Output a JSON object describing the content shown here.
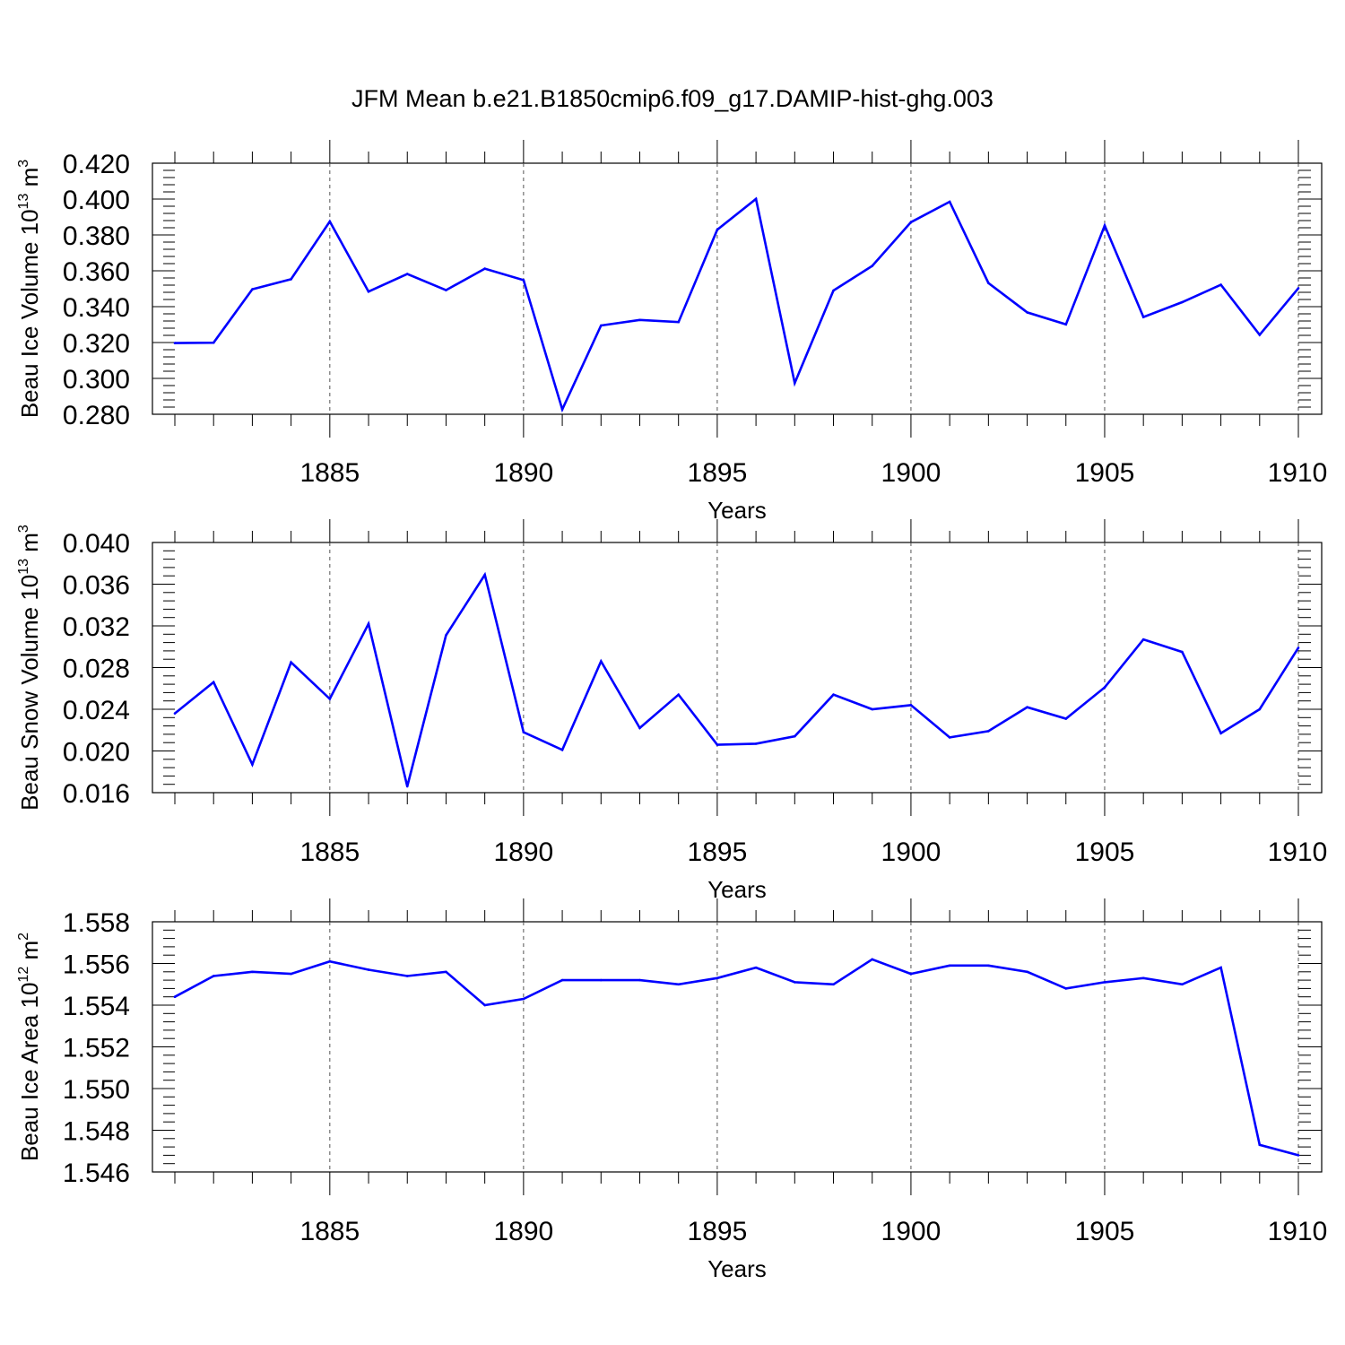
{
  "title": "JFM Mean b.e21.B1850cmip6.f09_g17.DAMIP-hist-ghg.003",
  "colors": {
    "series": "#0000ff",
    "axis": "#000000",
    "grid": "#555555"
  },
  "chart_data": [
    {
      "type": "line",
      "name": "ice-volume",
      "ylabel": {
        "text": "Beau Ice Volume 10",
        "exp": "13",
        "unit": " m",
        "unit_exp": "3"
      },
      "xlabel": "Years",
      "xlim": [
        1881,
        1910
      ],
      "ylim": [
        0.28,
        0.42
      ],
      "yticks": [
        "0.420",
        "0.400",
        "0.380",
        "0.360",
        "0.340",
        "0.320",
        "0.300",
        "0.280"
      ],
      "ytick_values": [
        0.42,
        0.4,
        0.38,
        0.36,
        0.34,
        0.32,
        0.3,
        0.28
      ],
      "xticks": [
        "1885",
        "1890",
        "1895",
        "1900",
        "1905",
        "1910"
      ],
      "xtick_values": [
        1885,
        1890,
        1895,
        1900,
        1905,
        1910
      ],
      "grid": "dashed vertical at major x ticks",
      "x": [
        1881,
        1882,
        1883,
        1884,
        1885,
        1886,
        1887,
        1888,
        1889,
        1890,
        1891,
        1892,
        1893,
        1894,
        1895,
        1896,
        1897,
        1898,
        1899,
        1900,
        1901,
        1902,
        1903,
        1904,
        1905,
        1906,
        1907,
        1908,
        1909,
        1910
      ],
      "values": [
        0.3197,
        0.3199,
        0.3497,
        0.3553,
        0.3875,
        0.3484,
        0.3582,
        0.3492,
        0.3612,
        0.3548,
        0.2827,
        0.3295,
        0.3326,
        0.3314,
        0.3829,
        0.4001,
        0.2974,
        0.349,
        0.3627,
        0.3871,
        0.3985,
        0.3532,
        0.3368,
        0.3301,
        0.3852,
        0.3342,
        0.3425,
        0.3522,
        0.3243,
        0.3503
      ]
    },
    {
      "type": "line",
      "name": "snow-volume",
      "ylabel": {
        "text": "Beau Snow Volume 10",
        "exp": "13",
        "unit": " m",
        "unit_exp": "3"
      },
      "xlabel": "Years",
      "xlim": [
        1881,
        1910
      ],
      "ylim": [
        0.016,
        0.04
      ],
      "yticks": [
        "0.040",
        "0.036",
        "0.032",
        "0.028",
        "0.024",
        "0.020",
        "0.016"
      ],
      "ytick_values": [
        0.04,
        0.036,
        0.032,
        0.028,
        0.024,
        0.02,
        0.016
      ],
      "xticks": [
        "1885",
        "1890",
        "1895",
        "1900",
        "1905",
        "1910"
      ],
      "xtick_values": [
        1885,
        1890,
        1895,
        1900,
        1905,
        1910
      ],
      "grid": "dashed vertical at major x ticks",
      "x": [
        1881,
        1882,
        1883,
        1884,
        1885,
        1886,
        1887,
        1888,
        1889,
        1890,
        1891,
        1892,
        1893,
        1894,
        1895,
        1896,
        1897,
        1898,
        1899,
        1900,
        1901,
        1902,
        1903,
        1904,
        1905,
        1906,
        1907,
        1908,
        1909,
        1910
      ],
      "values": [
        0.0236,
        0.0266,
        0.0187,
        0.0285,
        0.025,
        0.0322,
        0.0166,
        0.0311,
        0.0369,
        0.0218,
        0.0201,
        0.0286,
        0.0222,
        0.0254,
        0.0206,
        0.0207,
        0.0214,
        0.0254,
        0.024,
        0.0244,
        0.0213,
        0.0219,
        0.0242,
        0.0231,
        0.0261,
        0.0307,
        0.0295,
        0.0217,
        0.024,
        0.0299
      ]
    },
    {
      "type": "line",
      "name": "ice-area",
      "ylabel": {
        "text": "Beau Ice Area 10",
        "exp": "12",
        "unit": " m",
        "unit_exp": "2"
      },
      "xlabel": "Years",
      "xlim": [
        1881,
        1910
      ],
      "ylim": [
        1.546,
        1.558
      ],
      "yticks": [
        "1.558",
        "1.556",
        "1.554",
        "1.552",
        "1.550",
        "1.548",
        "1.546"
      ],
      "ytick_values": [
        1.558,
        1.556,
        1.554,
        1.552,
        1.55,
        1.548,
        1.546
      ],
      "xticks": [
        "1885",
        "1890",
        "1895",
        "1900",
        "1905",
        "1910"
      ],
      "xtick_values": [
        1885,
        1890,
        1895,
        1900,
        1905,
        1910
      ],
      "grid": "dashed vertical at major x ticks",
      "x": [
        1881,
        1882,
        1883,
        1884,
        1885,
        1886,
        1887,
        1888,
        1889,
        1890,
        1891,
        1892,
        1893,
        1894,
        1895,
        1896,
        1897,
        1898,
        1899,
        1900,
        1901,
        1902,
        1903,
        1904,
        1905,
        1906,
        1907,
        1908,
        1909,
        1910
      ],
      "values": [
        1.5544,
        1.5554,
        1.5556,
        1.5555,
        1.5561,
        1.5557,
        1.5554,
        1.5556,
        1.554,
        1.5543,
        1.5552,
        1.5552,
        1.5552,
        1.555,
        1.5553,
        1.5558,
        1.5551,
        1.555,
        1.5562,
        1.5555,
        1.5559,
        1.5559,
        1.5556,
        1.5548,
        1.5551,
        1.5553,
        1.555,
        1.5558,
        1.5473,
        1.5468
      ]
    }
  ]
}
